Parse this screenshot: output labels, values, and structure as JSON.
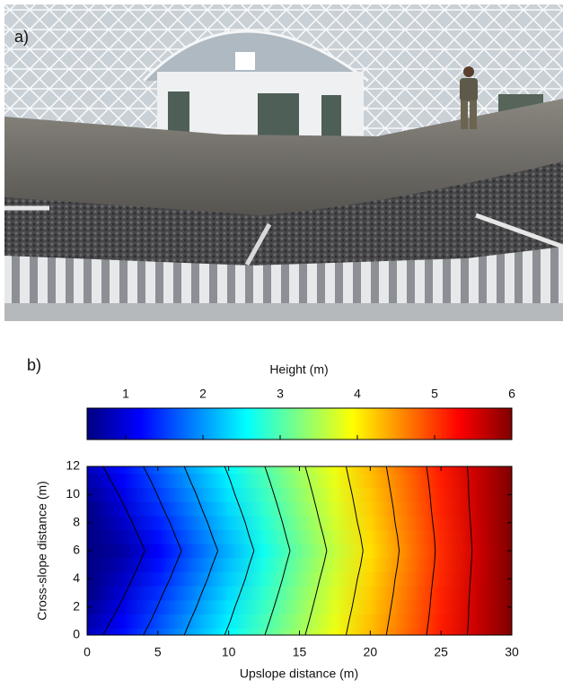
{
  "panel_a": {
    "label": "a)"
  },
  "panel_b": {
    "label": "b)"
  },
  "chart_data": {
    "type": "contour",
    "colorbar_title": "Height (m)",
    "colormap": "jet",
    "clim": [
      0.5,
      6
    ],
    "cticks": [
      1,
      2,
      3,
      4,
      5,
      6
    ],
    "xlabel": "Upslope distance (m)",
    "ylabel": "Cross-slope distance (m)",
    "xlim": [
      0,
      30
    ],
    "ylim": [
      0,
      12
    ],
    "xticks": [
      0,
      5,
      10,
      15,
      20,
      25,
      30
    ],
    "yticks": [
      0,
      2,
      4,
      6,
      8,
      10,
      12
    ],
    "contour_levels": [
      1,
      1.5,
      2,
      2.5,
      3,
      3.5,
      4,
      4.5,
      5,
      5.5
    ],
    "contour_color": "#000000",
    "x": [
      0,
      2.5,
      5,
      7.5,
      10,
      12.5,
      15,
      17.5,
      20,
      22.5,
      25,
      27.5,
      30
    ],
    "y": [
      0,
      1,
      2,
      3,
      4,
      5,
      6,
      7,
      8,
      9,
      10,
      11,
      12
    ],
    "z": [
      [
        0.8,
        1.24,
        1.68,
        2.11,
        2.55,
        2.99,
        3.43,
        3.86,
        4.3,
        4.74,
        5.18,
        5.61,
        6.05
      ],
      [
        0.7,
        1.15,
        1.59,
        2.04,
        2.48,
        2.93,
        3.38,
        3.82,
        4.27,
        4.71,
        5.16,
        5.6,
        6.05
      ],
      [
        0.6,
        1.05,
        1.51,
        1.96,
        2.42,
        2.87,
        3.33,
        3.78,
        4.23,
        4.69,
        5.14,
        5.6,
        6.05
      ],
      [
        0.5,
        0.96,
        1.43,
        1.89,
        2.35,
        2.81,
        3.28,
        3.74,
        4.2,
        4.66,
        5.13,
        5.59,
        6.05
      ],
      [
        0.4,
        0.87,
        1.34,
        1.81,
        2.28,
        2.75,
        3.23,
        3.7,
        4.17,
        4.64,
        5.11,
        5.58,
        6.05
      ],
      [
        0.3,
        0.78,
        1.26,
        1.74,
        2.22,
        2.7,
        3.18,
        3.65,
        4.13,
        4.61,
        5.09,
        5.57,
        6.05
      ],
      [
        0.2,
        0.69,
        1.18,
        1.66,
        2.15,
        2.64,
        3.13,
        3.61,
        4.1,
        4.59,
        5.08,
        5.56,
        6.05
      ],
      [
        0.3,
        0.78,
        1.26,
        1.74,
        2.22,
        2.7,
        3.18,
        3.65,
        4.13,
        4.61,
        5.09,
        5.57,
        6.05
      ],
      [
        0.4,
        0.87,
        1.34,
        1.81,
        2.28,
        2.75,
        3.23,
        3.7,
        4.17,
        4.64,
        5.11,
        5.58,
        6.05
      ],
      [
        0.5,
        0.96,
        1.43,
        1.89,
        2.35,
        2.81,
        3.28,
        3.74,
        4.2,
        4.66,
        5.13,
        5.59,
        6.05
      ],
      [
        0.6,
        1.05,
        1.51,
        1.96,
        2.42,
        2.87,
        3.33,
        3.78,
        4.23,
        4.69,
        5.14,
        5.6,
        6.05
      ],
      [
        0.7,
        1.15,
        1.59,
        2.04,
        2.48,
        2.93,
        3.38,
        3.82,
        4.27,
        4.71,
        5.16,
        5.6,
        6.05
      ],
      [
        0.8,
        1.24,
        1.68,
        2.11,
        2.55,
        2.99,
        3.43,
        3.86,
        4.3,
        4.74,
        5.18,
        5.61,
        6.05
      ]
    ]
  }
}
